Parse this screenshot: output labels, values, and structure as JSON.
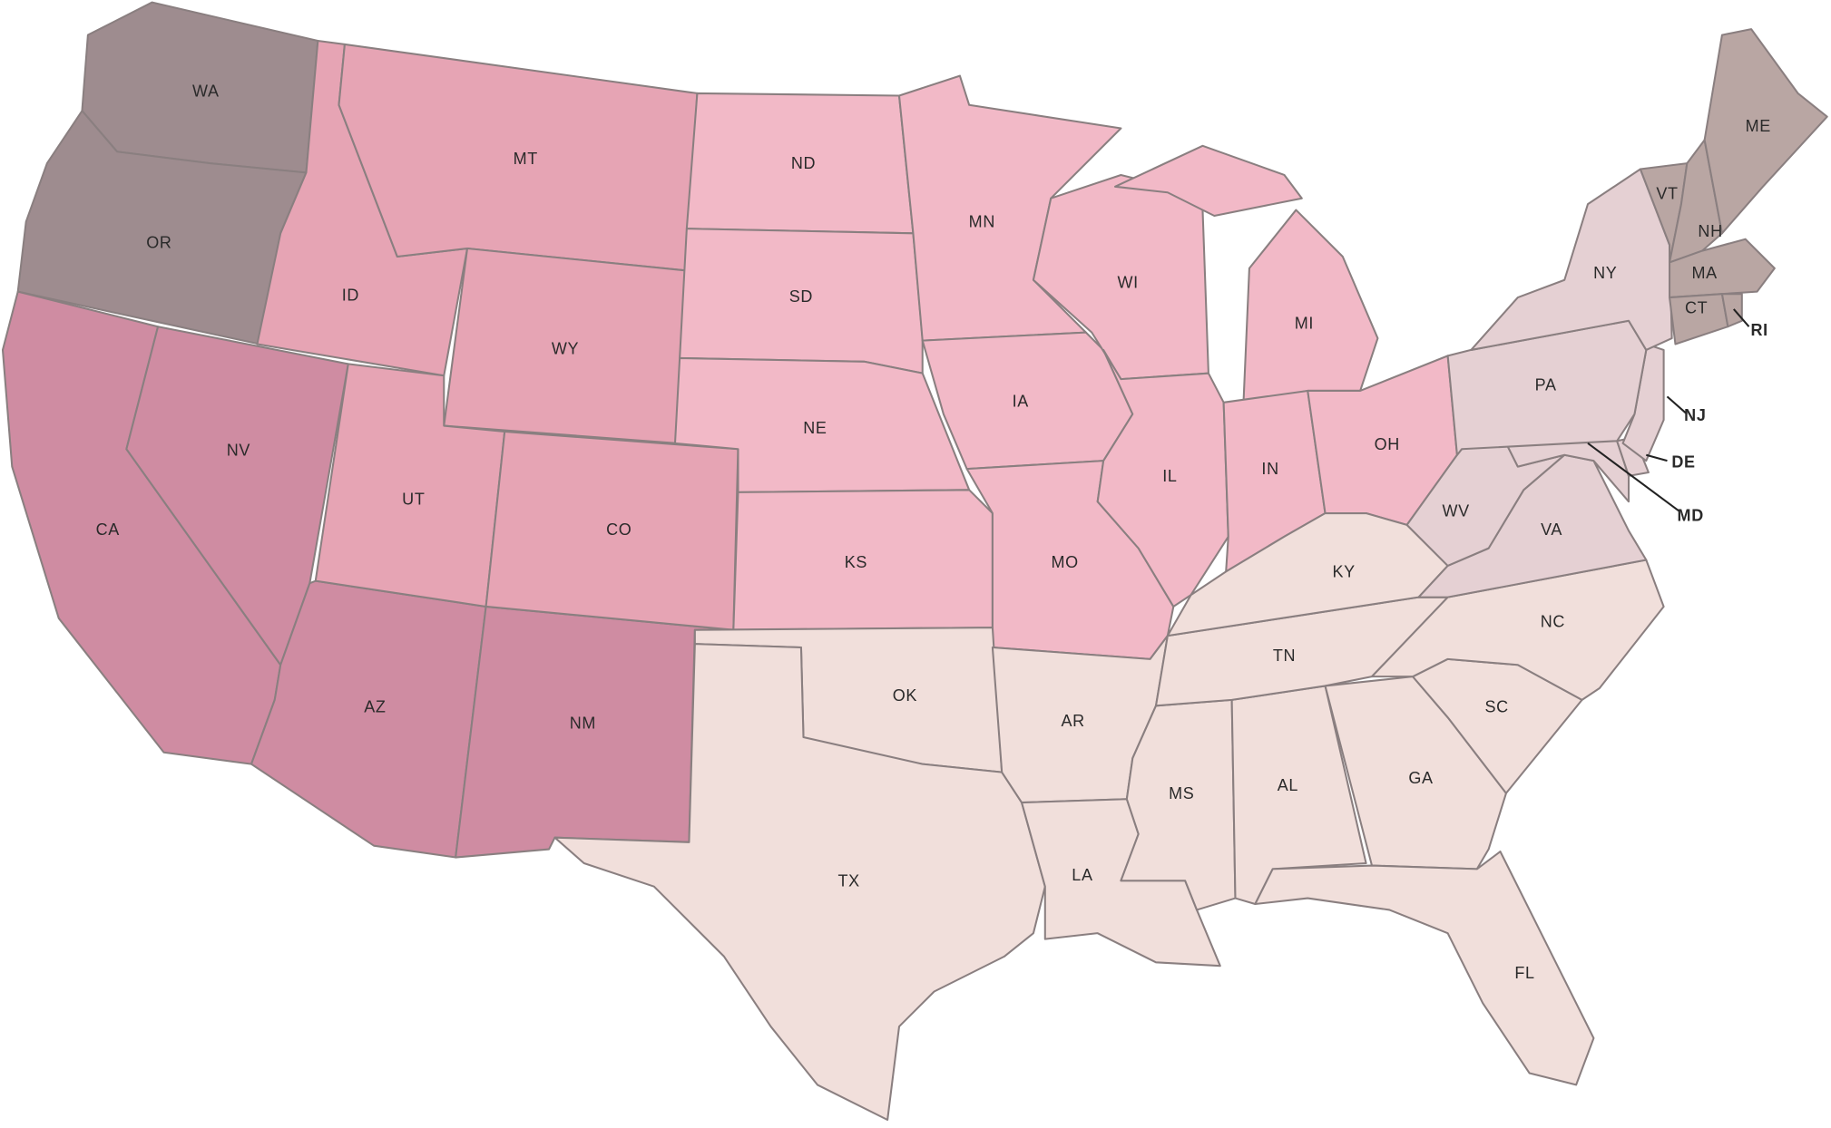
{
  "colors": {
    "northwest": "#9e8c8f",
    "mountain": "#e6a4b4",
    "midwest": "#f2b9c7",
    "southwest": "#cf8ca2",
    "south": "#f1dfdb",
    "midatlantic": "#e5d0d3",
    "newengland": "#b9a6a3"
  },
  "states": [
    {
      "abbr": "WA",
      "group": "northwest"
    },
    {
      "abbr": "OR",
      "group": "northwest"
    },
    {
      "abbr": "CA",
      "group": "southwest"
    },
    {
      "abbr": "NV",
      "group": "southwest"
    },
    {
      "abbr": "AZ",
      "group": "southwest"
    },
    {
      "abbr": "NM",
      "group": "southwest"
    },
    {
      "abbr": "ID",
      "group": "mountain"
    },
    {
      "abbr": "MT",
      "group": "mountain"
    },
    {
      "abbr": "WY",
      "group": "mountain"
    },
    {
      "abbr": "UT",
      "group": "mountain"
    },
    {
      "abbr": "CO",
      "group": "mountain"
    },
    {
      "abbr": "ND",
      "group": "midwest"
    },
    {
      "abbr": "SD",
      "group": "midwest"
    },
    {
      "abbr": "NE",
      "group": "midwest"
    },
    {
      "abbr": "KS",
      "group": "midwest"
    },
    {
      "abbr": "MN",
      "group": "midwest"
    },
    {
      "abbr": "IA",
      "group": "midwest"
    },
    {
      "abbr": "MO",
      "group": "midwest"
    },
    {
      "abbr": "WI",
      "group": "midwest"
    },
    {
      "abbr": "IL",
      "group": "midwest"
    },
    {
      "abbr": "MI",
      "group": "midwest"
    },
    {
      "abbr": "IN",
      "group": "midwest"
    },
    {
      "abbr": "OH",
      "group": "midwest"
    },
    {
      "abbr": "OK",
      "group": "south"
    },
    {
      "abbr": "TX",
      "group": "south"
    },
    {
      "abbr": "AR",
      "group": "south"
    },
    {
      "abbr": "LA",
      "group": "south"
    },
    {
      "abbr": "MS",
      "group": "south"
    },
    {
      "abbr": "AL",
      "group": "south"
    },
    {
      "abbr": "TN",
      "group": "south"
    },
    {
      "abbr": "KY",
      "group": "south"
    },
    {
      "abbr": "GA",
      "group": "south"
    },
    {
      "abbr": "FL",
      "group": "south"
    },
    {
      "abbr": "SC",
      "group": "south"
    },
    {
      "abbr": "NC",
      "group": "south"
    },
    {
      "abbr": "VA",
      "group": "midatlantic"
    },
    {
      "abbr": "WV",
      "group": "midatlantic"
    },
    {
      "abbr": "MD",
      "group": "midatlantic"
    },
    {
      "abbr": "DE",
      "group": "midatlantic"
    },
    {
      "abbr": "NJ",
      "group": "midatlantic"
    },
    {
      "abbr": "PA",
      "group": "midatlantic"
    },
    {
      "abbr": "NY",
      "group": "midatlantic"
    },
    {
      "abbr": "VT",
      "group": "newengland"
    },
    {
      "abbr": "NH",
      "group": "newengland"
    },
    {
      "abbr": "ME",
      "group": "newengland"
    },
    {
      "abbr": "MA",
      "group": "newengland"
    },
    {
      "abbr": "CT",
      "group": "newengland"
    },
    {
      "abbr": "RI",
      "group": "newengland"
    }
  ]
}
